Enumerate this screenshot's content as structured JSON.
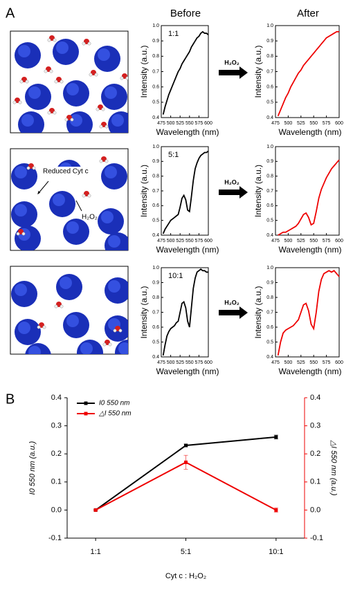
{
  "panel_labels": [
    "A",
    "B"
  ],
  "column_titles": [
    "Before",
    "After"
  ],
  "arrow_label": "H₂O₂",
  "illustration_labels": [
    "Reduced Cyt c",
    "H₂O₂"
  ],
  "chart_data": [
    {
      "type": "line",
      "annotation": "1:1",
      "xlabel": "Wavelength (nm)",
      "ylabel": "Intensity (a.u.)",
      "x": [
        480,
        485,
        490,
        495,
        500,
        505,
        510,
        515,
        520,
        525,
        530,
        535,
        540,
        545,
        550,
        555,
        560,
        565,
        570,
        575,
        580,
        585,
        590,
        595,
        600
      ],
      "xlim": [
        475,
        600
      ],
      "xticks": [
        475,
        500,
        525,
        550,
        575,
        600
      ],
      "ylim": [
        0.4,
        1.0
      ],
      "yticks": [
        0.4,
        0.5,
        0.6,
        0.7,
        0.8,
        0.9,
        {
          "value": 1,
          "label": "1.0"
        }
      ],
      "series": [
        {
          "color": "#000000",
          "values": [
            0.42,
            0.47,
            0.51,
            0.55,
            0.58,
            0.61,
            0.64,
            0.67,
            0.7,
            0.72,
            0.75,
            0.77,
            0.79,
            0.81,
            0.83,
            0.86,
            0.88,
            0.9,
            0.92,
            0.93,
            0.95,
            0.96,
            0.95,
            0.95,
            0.94
          ]
        }
      ]
    },
    {
      "type": "line",
      "xlabel": "Wavelength (nm)",
      "ylabel": "Intensity (a.u.)",
      "x": [
        480,
        485,
        490,
        495,
        500,
        505,
        510,
        515,
        520,
        525,
        530,
        535,
        540,
        545,
        550,
        555,
        560,
        565,
        570,
        575,
        580,
        585,
        590,
        595,
        600
      ],
      "xlim": [
        475,
        600
      ],
      "xticks": [
        475,
        500,
        525,
        550,
        575,
        600
      ],
      "ylim": [
        0.4,
        1.0
      ],
      "yticks": [
        0.4,
        0.5,
        0.6,
        0.7,
        0.8,
        0.9,
        {
          "value": 1,
          "label": "1.0"
        }
      ],
      "series": [
        {
          "color": "#ee0000",
          "values": [
            0.41,
            0.45,
            0.49,
            0.53,
            0.56,
            0.6,
            0.63,
            0.66,
            0.69,
            0.71,
            0.74,
            0.76,
            0.78,
            0.8,
            0.82,
            0.84,
            0.86,
            0.88,
            0.9,
            0.92,
            0.93,
            0.94,
            0.95,
            0.96,
            0.96
          ]
        }
      ]
    },
    {
      "type": "line",
      "annotation": "5:1",
      "xlabel": "Wavelength (nm)",
      "ylabel": "Intensity (a.u.)",
      "x": [
        480,
        485,
        490,
        495,
        500,
        505,
        510,
        515,
        520,
        525,
        530,
        535,
        540,
        545,
        550,
        555,
        560,
        565,
        570,
        575,
        580,
        585,
        590,
        595,
        600
      ],
      "xlim": [
        475,
        600
      ],
      "xticks": [
        475,
        500,
        525,
        550,
        575,
        600
      ],
      "ylim": [
        0.4,
        1.0
      ],
      "yticks": [
        0.4,
        0.5,
        0.6,
        0.7,
        0.8,
        0.9,
        {
          "value": 1,
          "label": "1.0"
        }
      ],
      "series": [
        {
          "color": "#000000",
          "values": [
            0.41,
            0.44,
            0.46,
            0.48,
            0.5,
            0.51,
            0.52,
            0.53,
            0.54,
            0.59,
            0.65,
            0.67,
            0.64,
            0.57,
            0.56,
            0.66,
            0.77,
            0.85,
            0.89,
            0.92,
            0.94,
            0.95,
            0.96,
            0.96,
            0.97
          ]
        }
      ]
    },
    {
      "type": "line",
      "xlabel": "Wavelength (nm)",
      "ylabel": "Intensity (a.u.)",
      "x": [
        480,
        485,
        490,
        495,
        500,
        505,
        510,
        515,
        520,
        525,
        530,
        535,
        540,
        545,
        550,
        555,
        560,
        565,
        570,
        575,
        580,
        585,
        590,
        595,
        600
      ],
      "xlim": [
        475,
        600
      ],
      "xticks": [
        475,
        500,
        525,
        550,
        575,
        600
      ],
      "ylim": [
        0.4,
        1.0
      ],
      "yticks": [
        0.4,
        0.5,
        0.6,
        0.7,
        0.8,
        0.9,
        {
          "value": 1,
          "label": "1.0"
        }
      ],
      "series": [
        {
          "color": "#ee0000",
          "values": [
            0.4,
            0.41,
            0.42,
            0.42,
            0.43,
            0.44,
            0.45,
            0.46,
            0.48,
            0.51,
            0.54,
            0.55,
            0.52,
            0.47,
            0.48,
            0.56,
            0.65,
            0.71,
            0.75,
            0.79,
            0.82,
            0.85,
            0.87,
            0.89,
            0.91
          ]
        }
      ]
    },
    {
      "type": "line",
      "annotation": "10:1",
      "xlabel": "Wavelength (nm)",
      "ylabel": "Intensity (a.u.)",
      "x": [
        480,
        485,
        490,
        495,
        500,
        505,
        510,
        515,
        520,
        525,
        530,
        535,
        540,
        545,
        550,
        555,
        560,
        565,
        570,
        575,
        580,
        585,
        590,
        595,
        600
      ],
      "xlim": [
        475,
        600
      ],
      "xticks": [
        475,
        500,
        525,
        550,
        575,
        600
      ],
      "ylim": [
        0.4,
        1.0
      ],
      "yticks": [
        0.4,
        0.5,
        0.6,
        0.7,
        0.8,
        0.9,
        {
          "value": 1,
          "label": "1.0"
        }
      ],
      "series": [
        {
          "color": "#000000",
          "values": [
            0.41,
            0.48,
            0.54,
            0.57,
            0.59,
            0.6,
            0.61,
            0.63,
            0.64,
            0.7,
            0.76,
            0.77,
            0.73,
            0.64,
            0.6,
            0.73,
            0.86,
            0.93,
            0.97,
            0.98,
            0.99,
            0.98,
            0.98,
            0.97,
            0.97
          ]
        }
      ]
    },
    {
      "type": "line",
      "xlabel": "Wavelength (nm)",
      "ylabel": "Intensity (a.u.)",
      "x": [
        480,
        485,
        490,
        495,
        500,
        505,
        510,
        515,
        520,
        525,
        530,
        535,
        540,
        545,
        550,
        555,
        560,
        565,
        570,
        575,
        580,
        585,
        590,
        595,
        600
      ],
      "xlim": [
        475,
        600
      ],
      "xticks": [
        475,
        500,
        525,
        550,
        575,
        600
      ],
      "ylim": [
        0.4,
        1.0
      ],
      "yticks": [
        0.4,
        0.5,
        0.6,
        0.7,
        0.8,
        0.9,
        {
          "value": 1,
          "label": "1.0"
        }
      ],
      "series": [
        {
          "color": "#ee0000",
          "values": [
            0.41,
            0.5,
            0.56,
            0.58,
            0.59,
            0.6,
            0.61,
            0.63,
            0.65,
            0.7,
            0.75,
            0.76,
            0.71,
            0.62,
            0.59,
            0.7,
            0.84,
            0.92,
            0.96,
            0.97,
            0.98,
            0.97,
            0.98,
            0.96,
            0.94
          ]
        }
      ]
    },
    {
      "type": "errorline",
      "xlabel": "Cyt c : H₂O₂",
      "ylabel": "I0 550 nm (a.u.)",
      "y2label": "△I 550 nm (a.u.)",
      "categories": [
        "1:1",
        "5:1",
        "10:1"
      ],
      "ylim": [
        -0.1,
        0.4
      ],
      "yticks": [
        -0.1,
        {
          "value": 0,
          "label": "0.0"
        },
        0.1,
        0.2,
        0.3,
        0.4
      ],
      "y2lim": [
        -0.1,
        0.4
      ],
      "y2ticks": [
        -0.1,
        {
          "value": 0,
          "label": "0.0"
        },
        0.1,
        0.2,
        0.3,
        0.4
      ],
      "y2color": "#ee0000",
      "legend": "upper left",
      "series": [
        {
          "name": "I0 550 nm",
          "color": "#000000",
          "values": [
            0,
            0.23,
            0.26
          ],
          "errors": [
            0.002,
            0.005,
            0.007
          ]
        },
        {
          "name": "△I 550 nm",
          "color": "#ee0000",
          "axis": "y2",
          "values": [
            0,
            0.17,
            0
          ],
          "errors": [
            0.002,
            0.025,
            0.008
          ]
        }
      ]
    }
  ]
}
